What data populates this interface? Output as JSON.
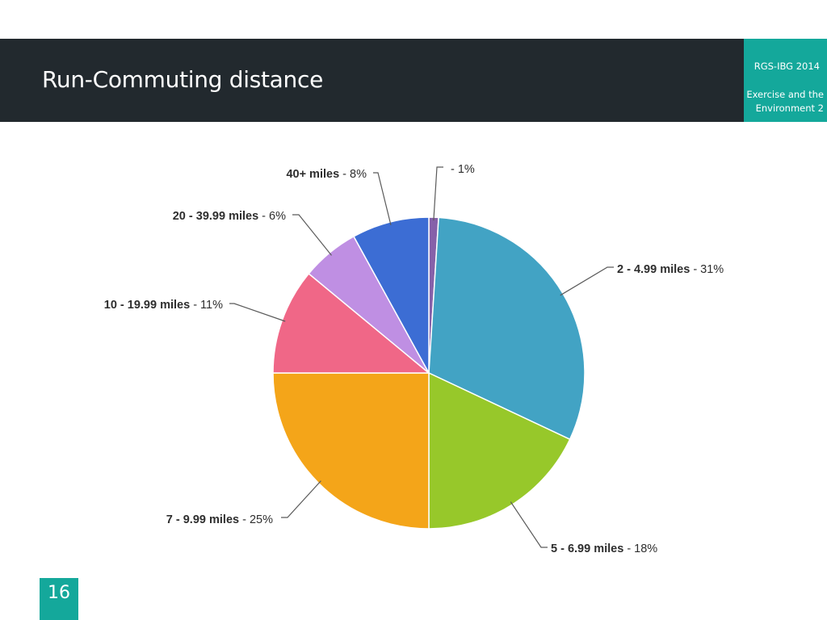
{
  "header": {
    "title": "Run-Commuting distance",
    "conference": "RGS-IBG 2014",
    "session": "Exercise and the Environment 2"
  },
  "footer": {
    "page_number": "16"
  },
  "colors": {
    "header_bg": "#22292e",
    "accent": "#14a89b"
  },
  "chart_data": {
    "type": "pie",
    "title": "",
    "slices": [
      {
        "label": "",
        "value": 1,
        "pct_label": "- 1%",
        "color": "#8661a9"
      },
      {
        "label": "2 - 4.99 miles",
        "value": 31,
        "pct_label": "- 31%",
        "color": "#42a3c4"
      },
      {
        "label": "5 - 6.99 miles",
        "value": 18,
        "pct_label": "- 18%",
        "color": "#97c82a"
      },
      {
        "label": "7 - 9.99 miles",
        "value": 25,
        "pct_label": "- 25%",
        "color": "#f4a519"
      },
      {
        "label": "10 - 19.99 miles",
        "value": 11,
        "pct_label": "- 11%",
        "color": "#f06787"
      },
      {
        "label": "20 - 39.99 miles",
        "value": 6,
        "pct_label": "- 6%",
        "color": "#bf8fe3"
      },
      {
        "label": "40+ miles",
        "value": 8,
        "pct_label": "- 8%",
        "color": "#3c6dd4"
      }
    ]
  }
}
